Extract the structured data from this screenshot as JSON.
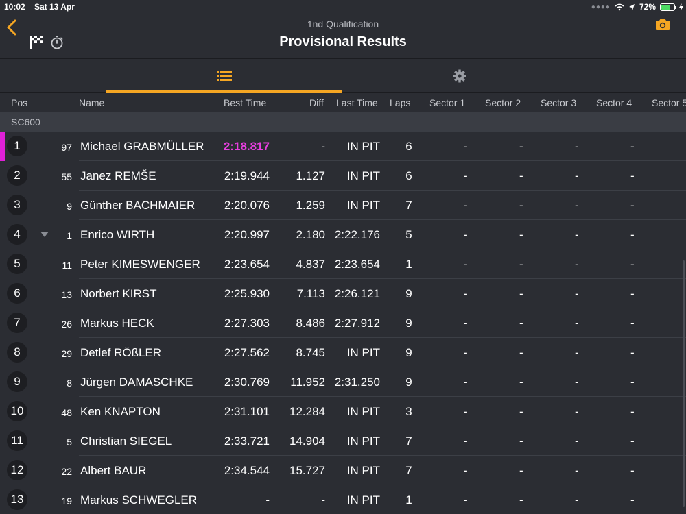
{
  "status_bar": {
    "time": "10:02",
    "date": "Sat 13 Apr",
    "battery": "72%"
  },
  "header": {
    "subtitle": "1nd Qualification",
    "title": "Provisional Results"
  },
  "columns": {
    "pos": "Pos",
    "name": "Name",
    "best": "Best Time",
    "diff": "Diff",
    "last": "Last Time",
    "laps": "Laps",
    "s1": "Sector 1",
    "s2": "Sector 2",
    "s3": "Sector 3",
    "s4": "Sector 4",
    "s5": "Sector 5"
  },
  "group": "SC600",
  "colors": {
    "accent": "#f5a623",
    "fastest": "#e83fe0",
    "background": "#2b2d33"
  },
  "rows": [
    {
      "pos": "1",
      "num": "97",
      "name": "Michael GRABMÜLLER",
      "best": "2:18.817",
      "diff": "-",
      "last": "IN PIT",
      "laps": "6",
      "s1": "-",
      "s2": "-",
      "s3": "-",
      "s4": "-"
    },
    {
      "pos": "2",
      "num": "55",
      "name": "Janez REMŠE",
      "best": "2:19.944",
      "diff": "1.127",
      "last": "IN PIT",
      "laps": "6",
      "s1": "-",
      "s2": "-",
      "s3": "-",
      "s4": "-"
    },
    {
      "pos": "3",
      "num": "9",
      "name": "Günther BACHMAIER",
      "best": "2:20.076",
      "diff": "1.259",
      "last": "IN PIT",
      "laps": "7",
      "s1": "-",
      "s2": "-",
      "s3": "-",
      "s4": "-"
    },
    {
      "pos": "4",
      "num": "1",
      "name": "Enrico WIRTH",
      "best": "2:20.997",
      "diff": "2.180",
      "last": "2:22.176",
      "laps": "5",
      "s1": "-",
      "s2": "-",
      "s3": "-",
      "s4": "-"
    },
    {
      "pos": "5",
      "num": "11",
      "name": "Peter KIMESWENGER",
      "best": "2:23.654",
      "diff": "4.837",
      "last": "2:23.654",
      "laps": "1",
      "s1": "-",
      "s2": "-",
      "s3": "-",
      "s4": "-"
    },
    {
      "pos": "6",
      "num": "13",
      "name": "Norbert KIRST",
      "best": "2:25.930",
      "diff": "7.113",
      "last": "2:26.121",
      "laps": "9",
      "s1": "-",
      "s2": "-",
      "s3": "-",
      "s4": "-"
    },
    {
      "pos": "7",
      "num": "26",
      "name": "Markus HECK",
      "best": "2:27.303",
      "diff": "8.486",
      "last": "2:27.912",
      "laps": "9",
      "s1": "-",
      "s2": "-",
      "s3": "-",
      "s4": "-"
    },
    {
      "pos": "8",
      "num": "29",
      "name": "Detlef RÖßLER",
      "best": "2:27.562",
      "diff": "8.745",
      "last": "IN PIT",
      "laps": "9",
      "s1": "-",
      "s2": "-",
      "s3": "-",
      "s4": "-"
    },
    {
      "pos": "9",
      "num": "8",
      "name": "Jürgen DAMASCHKE",
      "best": "2:30.769",
      "diff": "11.952",
      "last": "2:31.250",
      "laps": "9",
      "s1": "-",
      "s2": "-",
      "s3": "-",
      "s4": "-"
    },
    {
      "pos": "10",
      "num": "48",
      "name": "Ken KNAPTON",
      "best": "2:31.101",
      "diff": "12.284",
      "last": "IN PIT",
      "laps": "3",
      "s1": "-",
      "s2": "-",
      "s3": "-",
      "s4": "-"
    },
    {
      "pos": "11",
      "num": "5",
      "name": "Christian SIEGEL",
      "best": "2:33.721",
      "diff": "14.904",
      "last": "IN PIT",
      "laps": "7",
      "s1": "-",
      "s2": "-",
      "s3": "-",
      "s4": "-"
    },
    {
      "pos": "12",
      "num": "22",
      "name": "Albert BAUR",
      "best": "2:34.544",
      "diff": "15.727",
      "last": "IN PIT",
      "laps": "7",
      "s1": "-",
      "s2": "-",
      "s3": "-",
      "s4": "-"
    },
    {
      "pos": "13",
      "num": "19",
      "name": "Markus SCHWEGLER",
      "best": "-",
      "diff": "-",
      "last": "IN PIT",
      "laps": "1",
      "s1": "-",
      "s2": "-",
      "s3": "-",
      "s4": "-"
    }
  ]
}
